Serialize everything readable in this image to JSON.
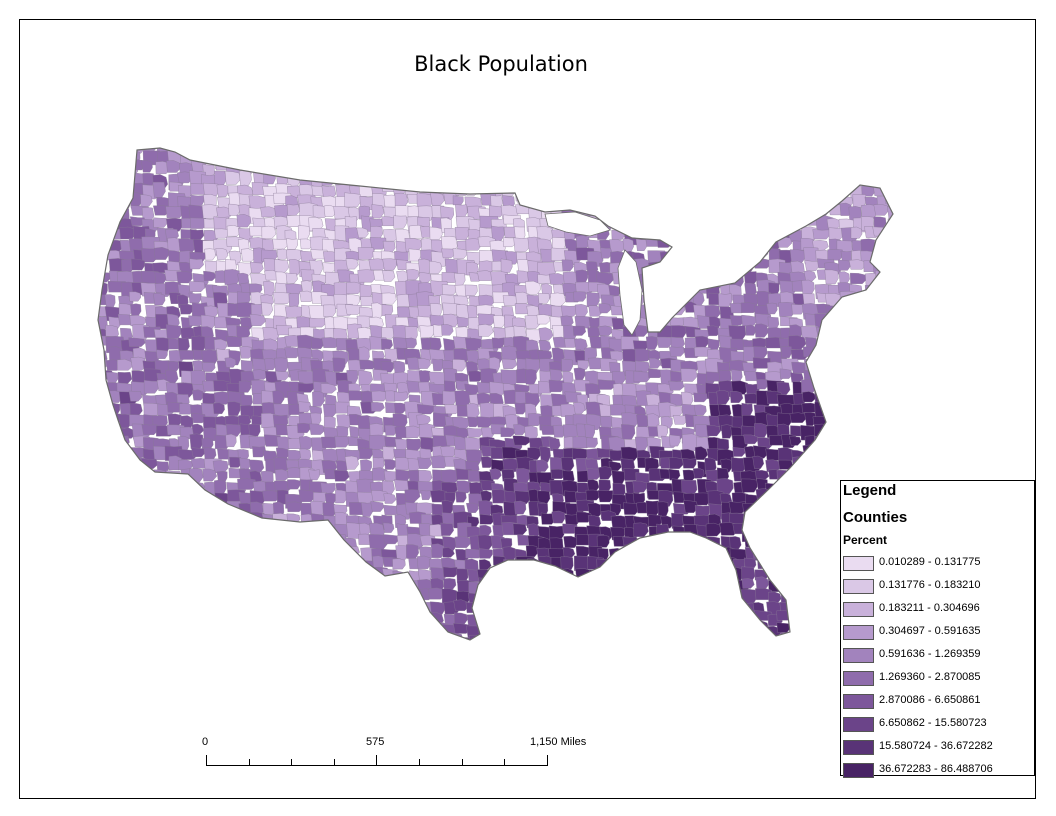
{
  "map": {
    "title": "Black Population",
    "state_border_color": "#6b6b6b",
    "county_line_color": "#8a7a96"
  },
  "legend": {
    "title": "Legend",
    "layer": "Counties",
    "field": "Percent",
    "classes": [
      {
        "label": "0.010289 - 0.131775",
        "color": "#eadcf1"
      },
      {
        "label": "0.131776 - 0.183210",
        "color": "#dac8e6"
      },
      {
        "label": "0.183211 - 0.304696",
        "color": "#c9b1da"
      },
      {
        "label": "0.304697 - 0.591635",
        "color": "#b69acd"
      },
      {
        "label": "0.591636 - 1.269359",
        "color": "#a283bd"
      },
      {
        "label": "1.269360 - 2.870085",
        "color": "#8f6cac"
      },
      {
        "label": "2.870086 - 6.650861",
        "color": "#7d579b"
      },
      {
        "label": "6.650862 - 15.580723",
        "color": "#6b4489"
      },
      {
        "label": "15.580724 - 36.672282",
        "color": "#593377"
      },
      {
        "label": "36.672283 - 86.488706",
        "color": "#482365"
      }
    ]
  },
  "scale_bar": {
    "labels": [
      "0",
      "575",
      "1,150 Miles"
    ]
  }
}
